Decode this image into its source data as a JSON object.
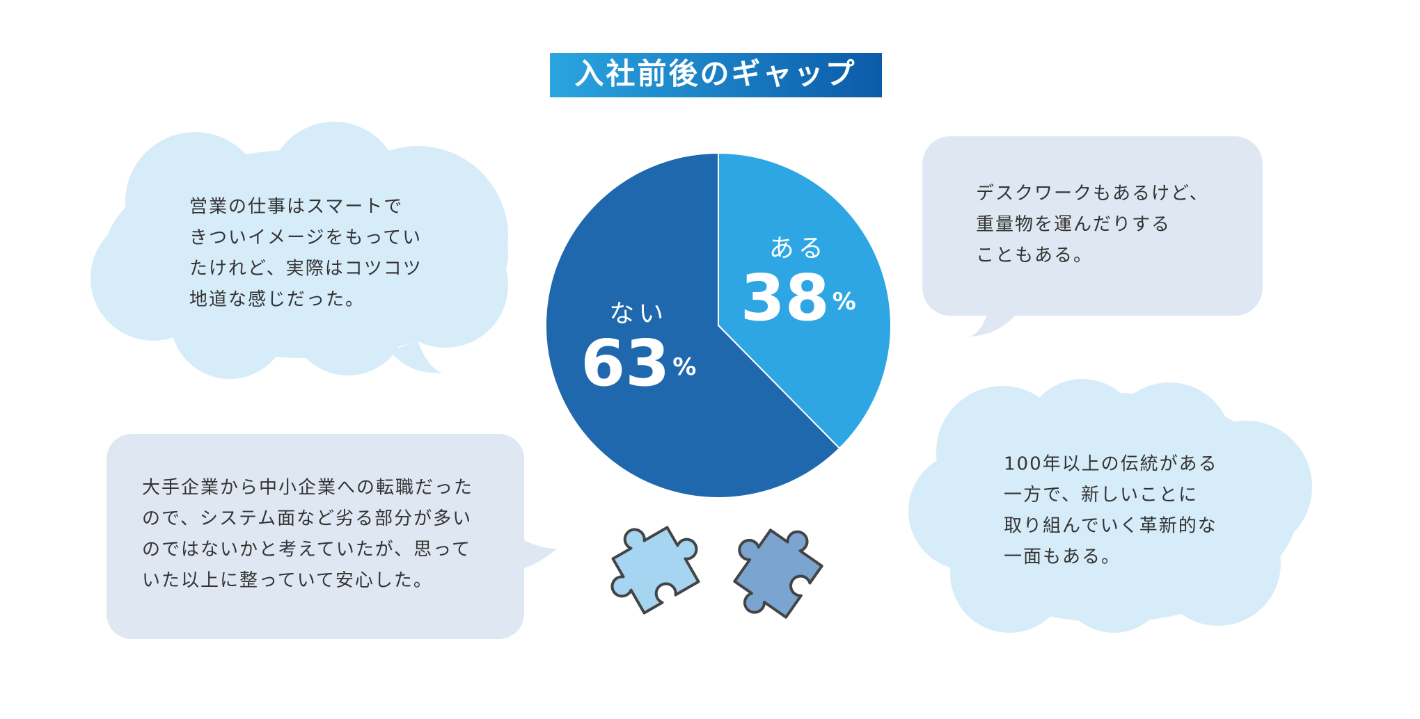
{
  "chart_data": {
    "type": "pie",
    "title": "入社前後のギャップ",
    "categories": [
      "ある",
      "ない"
    ],
    "values": [
      38,
      63
    ],
    "value_suffix": "%",
    "colors": [
      "#2fa6e4",
      "#1f68ad"
    ]
  },
  "comments": [
    [
      "営業の仕事はスマートで",
      "きついイメージをもってい",
      "たけれど、実際はコツコツ",
      "地道な感じだった。"
    ],
    [
      "デスクワークもあるけど、",
      "重量物を運んだりする",
      "こともある。"
    ],
    [
      "大手企業から中小企業への転職だった",
      "ので、システム面など劣る部分が多い",
      "のではないかと考えていたが、思って",
      "いた以上に整っていて安心した。"
    ],
    [
      "100年以上の伝統がある",
      "一方で、新しいことに",
      "取り組んでいく革新的な",
      "一面もある。"
    ]
  ]
}
